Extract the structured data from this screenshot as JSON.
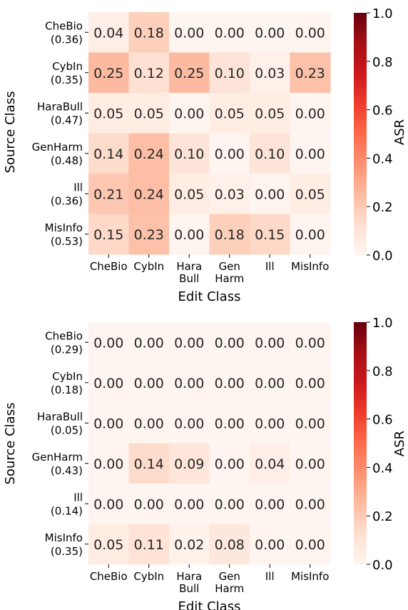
{
  "colors": {
    "cmap": [
      "#fff5f0",
      "#fee0d2",
      "#fcbba1",
      "#fc9272",
      "#fb6a4a",
      "#ef3b2c",
      "#cb181d",
      "#a50f15",
      "#67000d"
    ]
  },
  "chart_data": [
    {
      "type": "heatmap",
      "xlabel": "Edit Class",
      "ylabel": "Source Class",
      "colorbar_label": "ASR",
      "vlim": [
        0,
        1.0
      ],
      "colorbar_ticks": [
        "0.0",
        "0.2",
        "0.4",
        "0.6",
        "0.8",
        "1.0"
      ],
      "x_ticks": [
        [
          "CheBio"
        ],
        [
          "CybIn"
        ],
        [
          "Hara",
          "Bull"
        ],
        [
          "Gen",
          "Harm"
        ],
        [
          "Ill"
        ],
        [
          "MisInfo"
        ]
      ],
      "y_ticks": [
        [
          "CheBio",
          "(0.36)"
        ],
        [
          "CybIn",
          "(0.35)"
        ],
        [
          "HaraBull",
          "(0.47)"
        ],
        [
          "GenHarm",
          "(0.48)"
        ],
        [
          "Ill",
          "(0.36)"
        ],
        [
          "MisInfo",
          "(0.53)"
        ]
      ],
      "values": [
        [
          0.04,
          0.18,
          0.0,
          0.0,
          0.0,
          0.0
        ],
        [
          0.25,
          0.12,
          0.25,
          0.1,
          0.03,
          0.23
        ],
        [
          0.05,
          0.05,
          0.0,
          0.05,
          0.05,
          0.0
        ],
        [
          0.14,
          0.24,
          0.1,
          0.0,
          0.1,
          0.0
        ],
        [
          0.21,
          0.24,
          0.05,
          0.03,
          0.0,
          0.05
        ],
        [
          0.15,
          0.23,
          0.0,
          0.18,
          0.15,
          0.0
        ]
      ],
      "labels": [
        [
          "0.04",
          "0.18",
          "0.00",
          "0.00",
          "0.00",
          "0.00"
        ],
        [
          "0.25",
          "0.12",
          "0.25",
          "0.10",
          "0.03",
          "0.23"
        ],
        [
          "0.05",
          "0.05",
          "0.00",
          "0.05",
          "0.05",
          "0.00"
        ],
        [
          "0.14",
          "0.24",
          "0.10",
          "0.00",
          "0.10",
          "0.00"
        ],
        [
          "0.21",
          "0.24",
          "0.05",
          "0.03",
          "0.00",
          "0.05"
        ],
        [
          "0.15",
          "0.23",
          "0.00",
          "0.18",
          "0.15",
          "0.00"
        ]
      ]
    },
    {
      "type": "heatmap",
      "xlabel": "Edit Class",
      "ylabel": "Source Class",
      "colorbar_label": "ASR",
      "vlim": [
        0,
        1.0
      ],
      "colorbar_ticks": [
        "0.0",
        "0.2",
        "0.4",
        "0.6",
        "0.8",
        "1.0"
      ],
      "x_ticks": [
        [
          "CheBio"
        ],
        [
          "CybIn"
        ],
        [
          "Hara",
          "Bull"
        ],
        [
          "Gen",
          "Harm"
        ],
        [
          "Ill"
        ],
        [
          "MisInfo"
        ]
      ],
      "y_ticks": [
        [
          "CheBio",
          "(0.29)"
        ],
        [
          "CybIn",
          "(0.18)"
        ],
        [
          "HaraBull",
          "(0.05)"
        ],
        [
          "GenHarm",
          "(0.43)"
        ],
        [
          "Ill",
          "(0.14)"
        ],
        [
          "MisInfo",
          "(0.35)"
        ]
      ],
      "values": [
        [
          0.0,
          0.0,
          0.0,
          0.0,
          0.0,
          0.0
        ],
        [
          0.0,
          0.0,
          0.0,
          0.0,
          0.0,
          0.0
        ],
        [
          0.0,
          0.0,
          0.0,
          0.0,
          0.0,
          0.0
        ],
        [
          0.0,
          0.14,
          0.09,
          0.0,
          0.04,
          0.0
        ],
        [
          0.0,
          0.0,
          0.0,
          0.0,
          0.0,
          0.0
        ],
        [
          0.05,
          0.11,
          0.02,
          0.08,
          0.0,
          0.0
        ]
      ],
      "labels": [
        [
          "0.00",
          "0.00",
          "0.00",
          "0.00",
          "0.00",
          "0.00"
        ],
        [
          "0.00",
          "0.00",
          "0.00",
          "0.00",
          "0.00",
          "0.00"
        ],
        [
          "0.00",
          "0.00",
          "0.00",
          "0.00",
          "0.00",
          "0.00"
        ],
        [
          "0.00",
          "0.14",
          "0.09",
          "0.00",
          "0.04",
          "0.00"
        ],
        [
          "0.00",
          "0.00",
          "0.00",
          "0.00",
          "0.00",
          "0.00"
        ],
        [
          "0.05",
          "0.11",
          "0.02",
          "0.08",
          "0.00",
          "0.00"
        ]
      ]
    }
  ]
}
